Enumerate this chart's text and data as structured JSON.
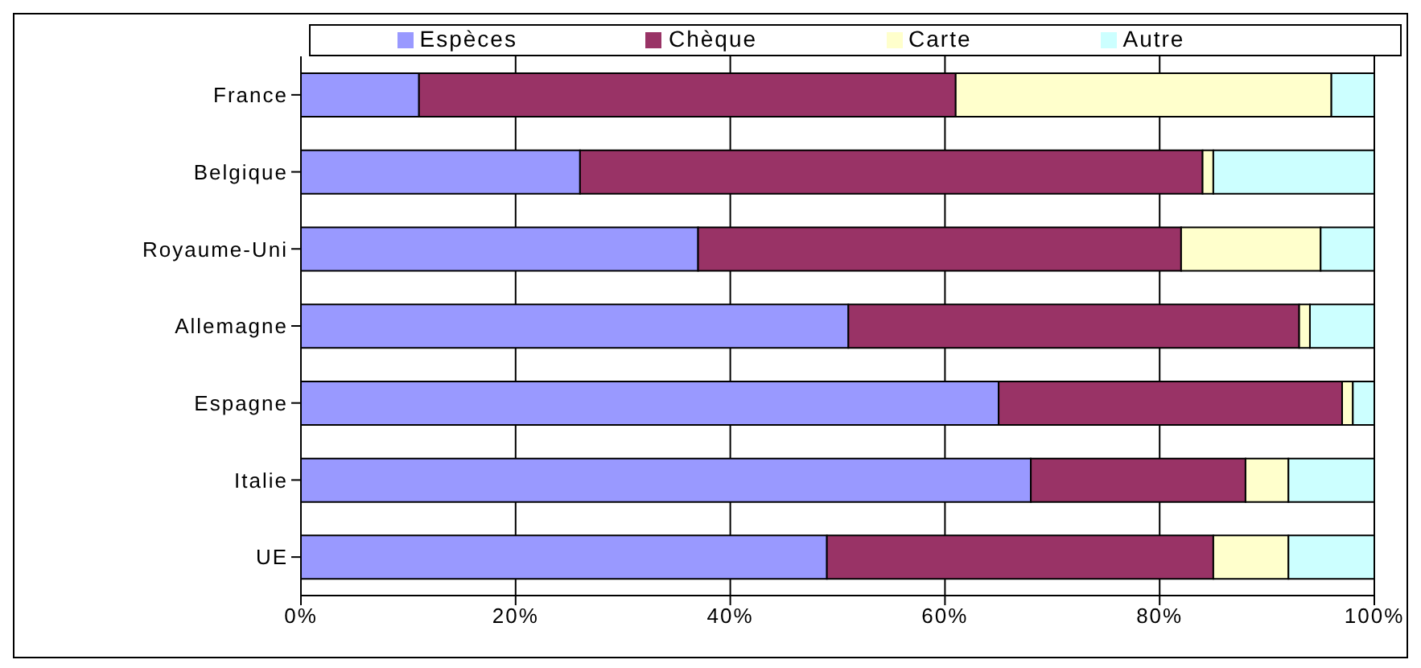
{
  "chart_data": {
    "type": "bar",
    "orientation": "horizontal",
    "stacked": true,
    "categories": [
      "France",
      "Belgique",
      "Royaume-Uni",
      "Allemagne",
      "Espagne",
      "Italie",
      "UE"
    ],
    "series": [
      {
        "name": "Espèces",
        "color": "#9999ff",
        "values": [
          11,
          26,
          37,
          51,
          65,
          68,
          49
        ]
      },
      {
        "name": "Chèque",
        "color": "#993366",
        "values": [
          50,
          58,
          45,
          42,
          32,
          20,
          36
        ]
      },
      {
        "name": "Carte",
        "color": "#ffffcc",
        "values": [
          35,
          1,
          13,
          1,
          1,
          4,
          7
        ]
      },
      {
        "name": "Autre",
        "color": "#ccffff",
        "values": [
          4,
          15,
          5,
          6,
          2,
          8,
          8
        ]
      }
    ],
    "xlim": [
      0,
      100
    ],
    "xticks": [
      {
        "value": 0,
        "label": "0%"
      },
      {
        "value": 20,
        "label": "20%"
      },
      {
        "value": 40,
        "label": "40%"
      },
      {
        "value": 60,
        "label": "60%"
      },
      {
        "value": 80,
        "label": "80%"
      },
      {
        "value": 100,
        "label": "100%"
      }
    ],
    "grid": "x",
    "legend": "top"
  }
}
